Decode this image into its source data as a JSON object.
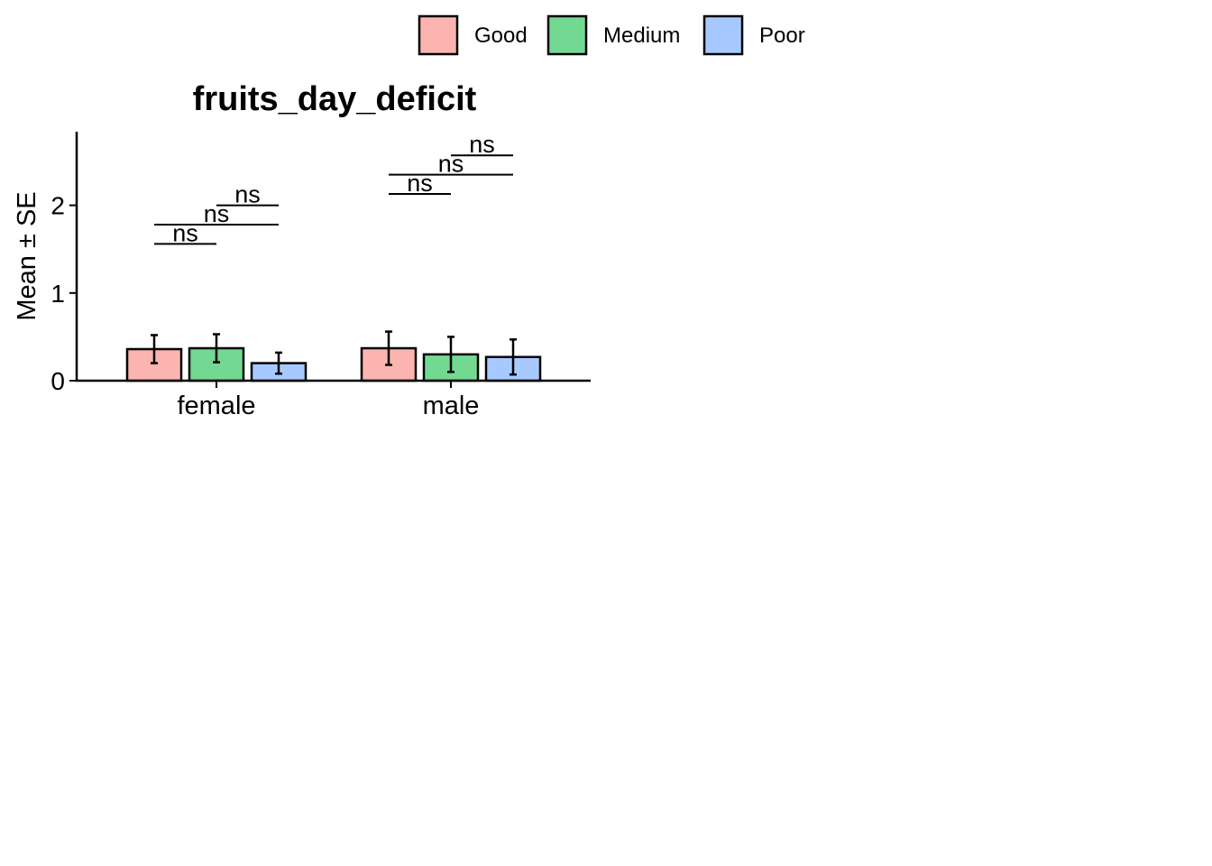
{
  "chart_data": {
    "type": "bar",
    "title": "fruits_day_deficit",
    "xlabel": "",
    "ylabel": "Mean ± SE",
    "categories": [
      "female",
      "male"
    ],
    "ylim": [
      0,
      2.8
    ],
    "yticks": [
      "0",
      "1",
      "2"
    ],
    "legend_position": "top",
    "series": [
      {
        "name": "Good",
        "color": "#F8766D",
        "values": [
          0.36,
          0.37
        ],
        "se": [
          0.16,
          0.19
        ]
      },
      {
        "name": "Medium",
        "color": "#00BA38",
        "values": [
          0.37,
          0.3
        ],
        "se": [
          0.16,
          0.2
        ]
      },
      {
        "name": "Poor",
        "color": "#619CFF",
        "values": [
          0.2,
          0.27
        ],
        "se": [
          0.12,
          0.2
        ]
      }
    ],
    "significance": [
      {
        "category": "female",
        "from": "Good",
        "to": "Medium",
        "label": "ns",
        "y": 1.56
      },
      {
        "category": "female",
        "from": "Good",
        "to": "Poor",
        "label": "ns",
        "y": 1.78
      },
      {
        "category": "female",
        "from": "Medium",
        "to": "Poor",
        "label": "ns",
        "y": 2.0
      },
      {
        "category": "male",
        "from": "Good",
        "to": "Medium",
        "label": "ns",
        "y": 2.13
      },
      {
        "category": "male",
        "from": "Good",
        "to": "Poor",
        "label": "ns",
        "y": 2.35
      },
      {
        "category": "male",
        "from": "Medium",
        "to": "Poor",
        "label": "ns",
        "y": 2.57
      }
    ]
  }
}
